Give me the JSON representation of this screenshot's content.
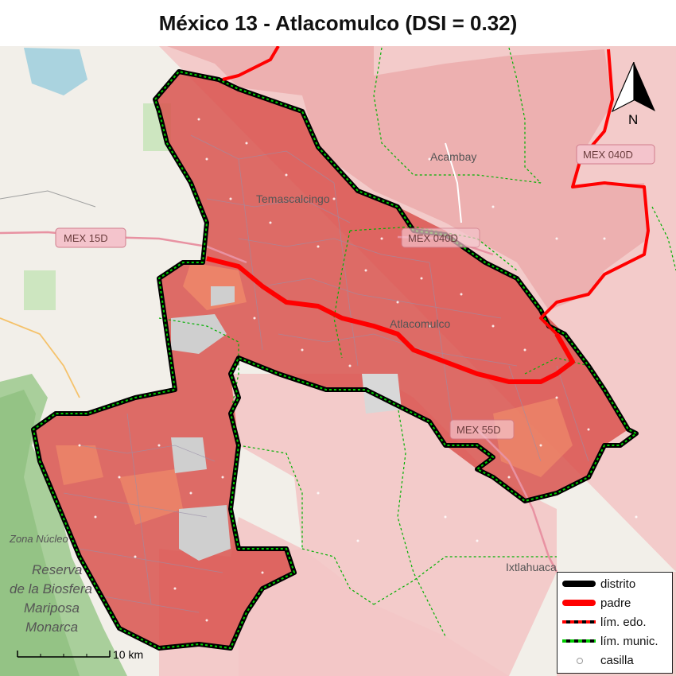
{
  "title": "México 13 - Atlacomulco (DSI = 0.32)",
  "colors": {
    "district_fill": "#d9534f",
    "parent_line": "#ff0000",
    "district_line": "#000000",
    "munic_line": "#00cc00",
    "background_pink": "#f3c6c6"
  },
  "map_labels": {
    "town_1": "Temascalcingo",
    "town_2": "Acambay",
    "town_3": "Atlacomulco",
    "town_4": "Ixtlahuaca",
    "reserve_1": "Zona Núcleo",
    "reserve_2": "Reserva",
    "reserve_3": "de la Biosfera",
    "reserve_4": "Mariposa",
    "reserve_5": "Monarca"
  },
  "road_shields": {
    "r1": "MEX 15D",
    "r2": "MEX 040D",
    "r3": "MEX 040D",
    "r4": "MEX 55D"
  },
  "legend": {
    "items": [
      {
        "label": "distrito",
        "style": "district"
      },
      {
        "label": "padre",
        "style": "parent"
      },
      {
        "label": "lím. edo.",
        "style": "state"
      },
      {
        "label": "lím. munic.",
        "style": "munic"
      },
      {
        "label": "casilla",
        "style": "casilla"
      }
    ]
  },
  "scale_label": "10 km",
  "north_label": "N"
}
